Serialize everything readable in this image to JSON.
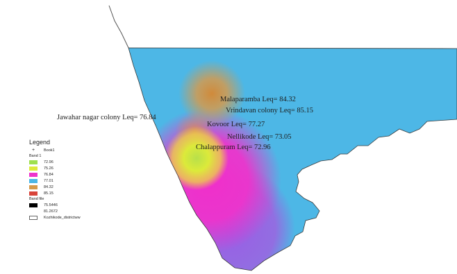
{
  "colors": {
    "sea": "#ffffff",
    "cyan": "#4db7e6",
    "magenta": "#ee33cc",
    "violet": "#a35ce0",
    "yellow": "#dcea3a",
    "green": "#9ee04e",
    "orange": "#d69a4a",
    "coast": "#444444"
  },
  "map_labels": [
    {
      "name": "Malaparamba",
      "text": "Malaparamba  Leq= 84.32",
      "leq": 84.32
    },
    {
      "name": "Vrindavan colony",
      "text": "Vrindavan colony  Leq= 85.15",
      "leq": 85.15
    },
    {
      "name": "Jawahar nagar colony",
      "text": "Jawahar nagar colony  Leq= 76.84",
      "leq": 76.84
    },
    {
      "name": "Kovoor",
      "text": "Kovoor  Leq= 77.27",
      "leq": 77.27
    },
    {
      "name": "Nellikode",
      "text": "Nellikode  Leq= 73.05",
      "leq": 73.05
    },
    {
      "name": "Chalappuram",
      "text": "Chalappuram  Leq= 72.96",
      "leq": 72.96
    }
  ],
  "legend": {
    "title": "Legend",
    "point_layer": "Book1",
    "class_layer": "Band 1",
    "classes": [
      {
        "label": "72.96",
        "color": "#9ee04e"
      },
      {
        "label": "75.26",
        "color": "#dcea3a"
      },
      {
        "label": "76.84",
        "color": "#ee33cc"
      },
      {
        "label": "77.01",
        "color": "#4db7e6"
      },
      {
        "label": "84.32",
        "color": "#d69a4a"
      },
      {
        "label": "85.15",
        "color": "#d8443a"
      }
    ],
    "range_layer": "Band file",
    "range_high": "75.5446",
    "range_low": "81.2672",
    "boundary": "Kozhikode_districtww"
  }
}
